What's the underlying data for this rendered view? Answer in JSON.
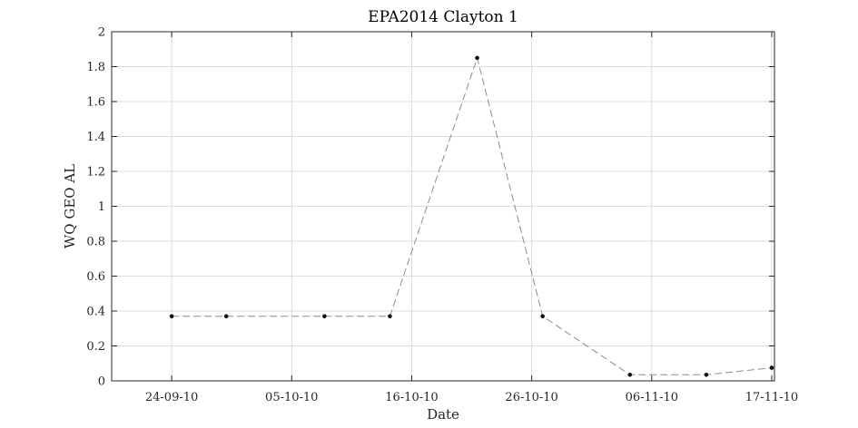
{
  "chart_data": {
    "type": "line",
    "title": "EPA2014 Clayton 1",
    "xlabel": "Date",
    "ylabel": "WQ GEO AL",
    "x_tick_labels": [
      "24-09-10",
      "05-10-10",
      "16-10-10",
      "26-10-10",
      "06-11-10",
      "17-11-10"
    ],
    "x_ticks": [
      "2010-09-24",
      "2010-10-05",
      "2010-10-16",
      "2010-10-27",
      "2010-11-07",
      "2010-11-18"
    ],
    "y_ticks": [
      0,
      0.2,
      0.4,
      0.6,
      0.8,
      1,
      1.2,
      1.4,
      1.6,
      1.8,
      2
    ],
    "y_tick_labels": [
      "0",
      "0.2",
      "0.4",
      "0.6",
      "0.8",
      "1",
      "1.2",
      "1.4",
      "1.6",
      "1.8",
      "2"
    ],
    "xlim": [
      "2010-09-18 12:00",
      "2010-11-18 06:00"
    ],
    "ylim": [
      0,
      2
    ],
    "grid": true,
    "series": [
      {
        "color": "#8c8c8c",
        "marker_color": "#111111",
        "line_style": "dashed",
        "x": [
          "2010-09-24",
          "2010-09-29",
          "2010-10-08",
          "2010-10-14",
          "2010-10-22",
          "2010-10-28",
          "2010-11-05",
          "2010-11-12",
          "2010-11-18"
        ],
        "y": [
          0.37,
          0.37,
          0.37,
          0.37,
          1.85,
          0.37,
          0.035,
          0.035,
          0.075
        ]
      }
    ]
  }
}
